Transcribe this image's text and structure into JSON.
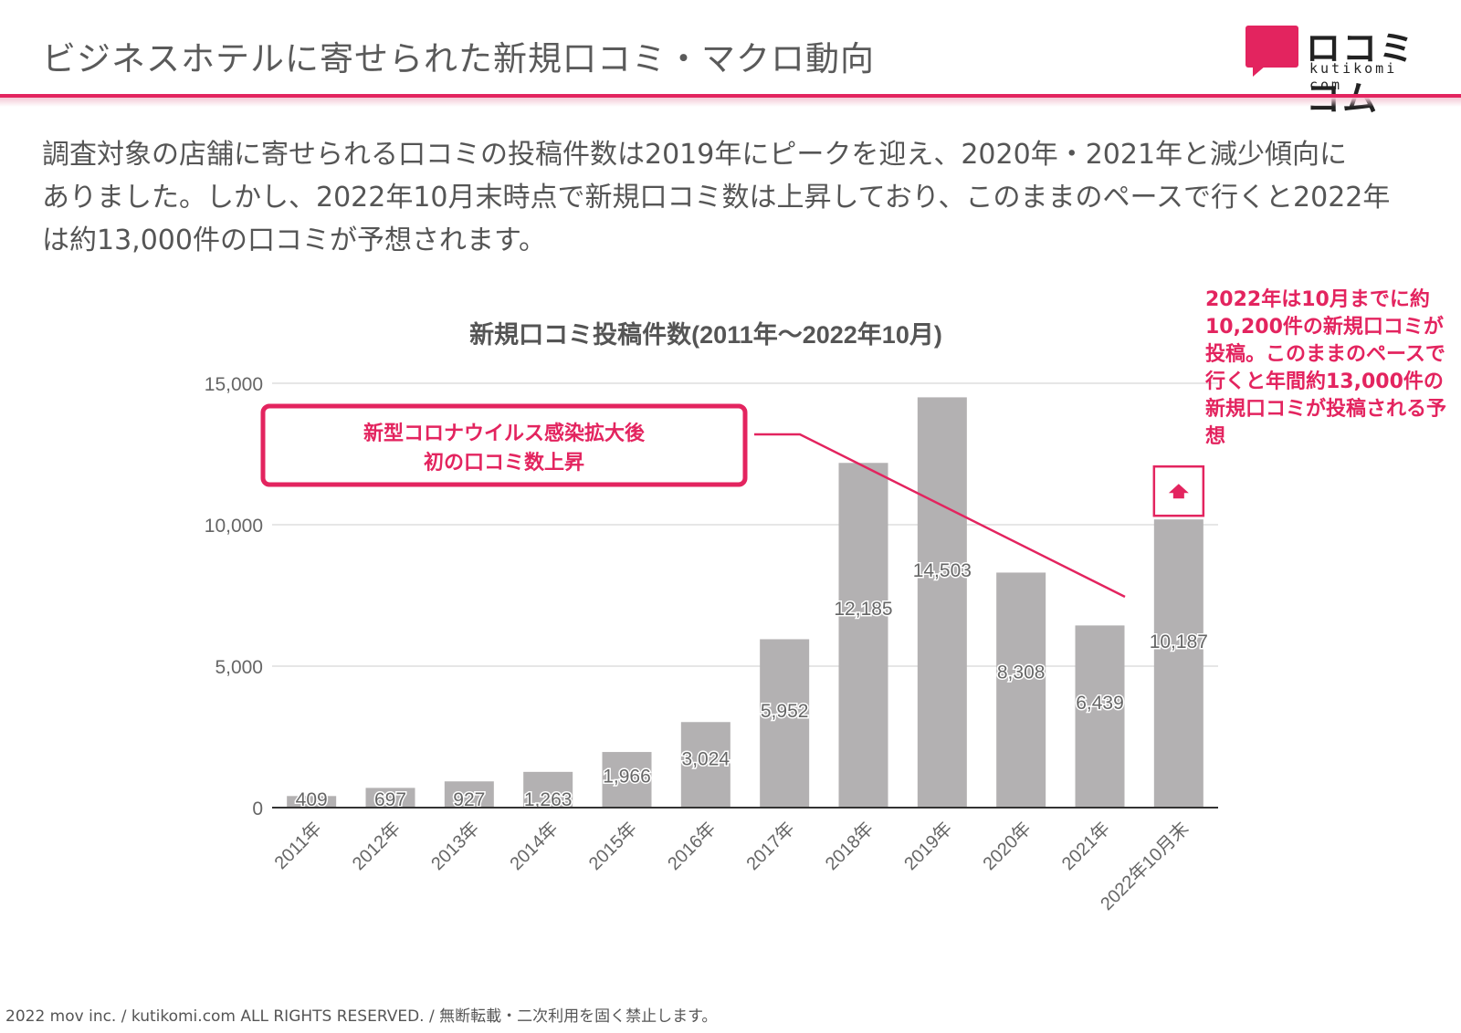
{
  "header": {
    "title": "ビジネスホテルに寄せられた新規口コミ・マクロ動向",
    "logo_text": "ロコミコム",
    "logo_sub": "kutikomi com"
  },
  "intro": {
    "lines": [
      "調査対象の店舗に寄せられる口コミの投稿件数は2019年にピークを迎え、2020年・2021年と減少傾向に",
      "ありました。しかし、2022年10月末時点で新規口コミ数は上昇しており、このままのペースで行くと2022年",
      "は約13,000件の口コミが予想されます。"
    ]
  },
  "annotation": {
    "line1": "新型コロナウイルス感染拡大後",
    "line2": "初の口コミ数上昇"
  },
  "note": {
    "text": "2022年は10月までに約10,200件の新規口コミが投稿。このままのペースで行くと年間約13,000件の新規口コミが投稿される予想"
  },
  "footer": {
    "text": "2022 mov inc. / kutikomi.com ALL RIGHTS RESERVED. / 無断転載・二次利用を固く禁止します。"
  },
  "colors": {
    "accent": "#e3245f",
    "bar": "#b3b1b2",
    "grid": "#dddddd",
    "text": "#555555"
  },
  "chart_data": {
    "type": "bar",
    "title": "新規口コミ投稿件数(2011年〜2022年10月)",
    "categories": [
      "2011年",
      "2012年",
      "2013年",
      "2014年",
      "2015年",
      "2016年",
      "2017年",
      "2018年",
      "2019年",
      "2020年",
      "2021年",
      "2022年10月末"
    ],
    "values": [
      409,
      697,
      927,
      1263,
      1966,
      3024,
      5952,
      12185,
      14503,
      8308,
      6439,
      10187
    ],
    "value_labels": [
      "409",
      "697",
      "927",
      "1,263",
      "1,966",
      "3,024",
      "5,952",
      "12,185",
      "14,503",
      "8,308",
      "6,439",
      "10,187"
    ],
    "yticks": [
      0,
      5000,
      10000,
      15000
    ],
    "ytick_labels": [
      "0",
      "5,000",
      "10,000",
      "15,000"
    ],
    "ylim": [
      0,
      15000
    ],
    "xlabel": "",
    "ylabel": "",
    "grid": true,
    "legend": "none",
    "upward_marker_on": "2022年10月末"
  }
}
